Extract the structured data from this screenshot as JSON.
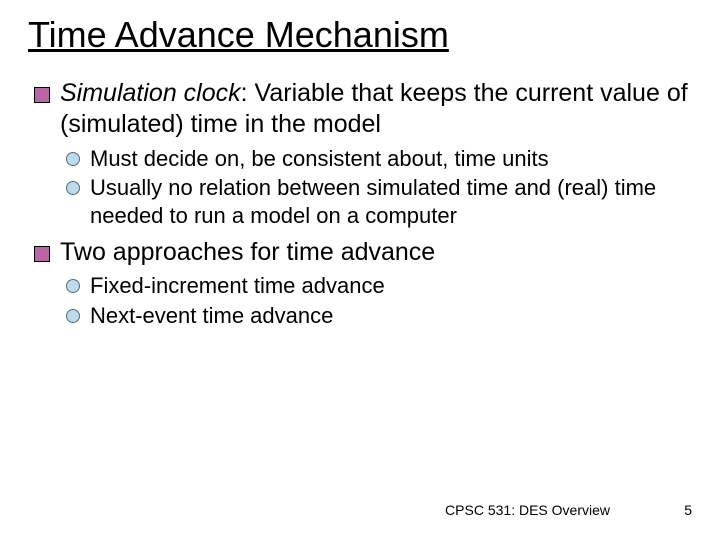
{
  "title": "Time Advance Mechanism",
  "bullets": [
    {
      "prefix_italic": "Simulation clock",
      "rest": ":  Variable that keeps the current value of (simulated) time in the model",
      "sub": [
        "Must decide on, be consistent about, time units",
        "Usually no relation between simulated time and (real) time needed to run a model on a computer"
      ]
    },
    {
      "text": "Two approaches for time advance",
      "sub": [
        "Fixed-increment time advance",
        "Next-event time advance"
      ]
    }
  ],
  "footer_label": "CPSC 531: DES Overview",
  "footer_page": "5",
  "colors": {
    "square_bullet": "#b967a4",
    "circle_bullet_fill": "#bfd9e8",
    "circle_bullet_border": "#4f6f85",
    "text": "#000000",
    "background": "#ffffff"
  },
  "typography": {
    "title_fontsize": 36,
    "level1_fontsize": 25,
    "level2_fontsize": 22,
    "footer_fontsize": 14,
    "font_family": "Trebuchet MS"
  }
}
